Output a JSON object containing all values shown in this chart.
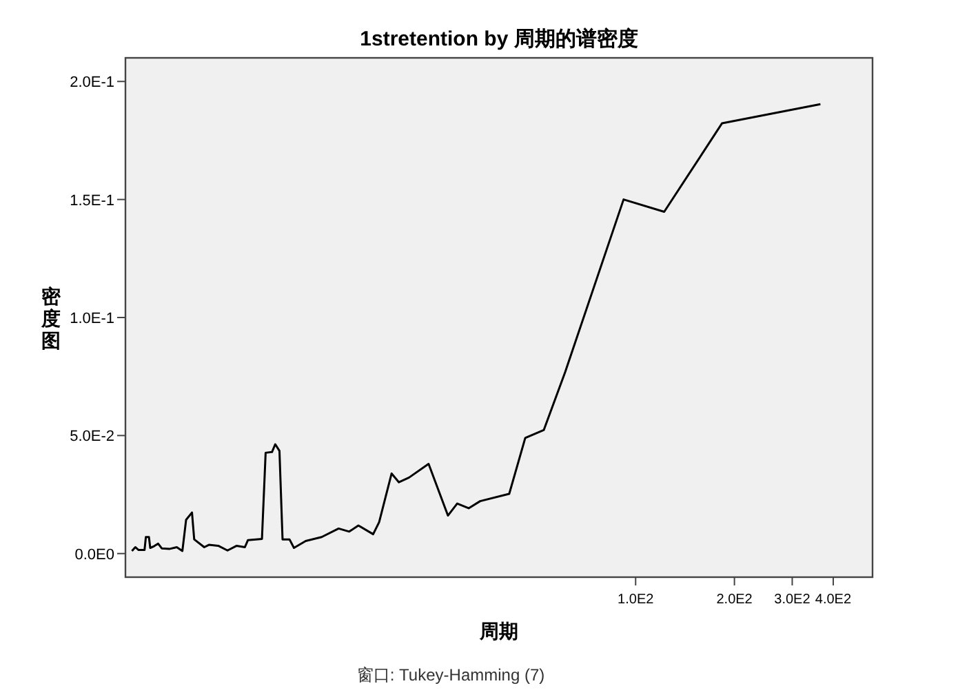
{
  "chart_data": {
    "type": "line",
    "title": "1stretention by 周期的谱密度",
    "xlabel": "周期",
    "ylabel": "密度图",
    "annotations": [
      "窗口: Tukey-Hamming (7)"
    ],
    "log": "x",
    "grid": false,
    "marker": "none",
    "line_style": "solid",
    "xlim": [
      2.79,
      527
    ],
    "ylim": [
      -0.01,
      0.21
    ],
    "xticks": [
      {
        "value": 100,
        "label": "1.0E2"
      },
      {
        "value": 200,
        "label": "2.0E2"
      },
      {
        "value": 300,
        "label": "3.0E2"
      },
      {
        "value": 400,
        "label": "4.0E2"
      }
    ],
    "yticks": [
      {
        "value": 0,
        "label": "0.0E0"
      },
      {
        "value": 0.05,
        "label": "5.0E-2"
      },
      {
        "value": 0.1,
        "label": "1.0E-1"
      },
      {
        "value": 0.15,
        "label": "1.5E-1"
      },
      {
        "value": 0.2,
        "label": "2.0E-1"
      }
    ],
    "series": [
      {
        "color": "#000000",
        "x": [
          2.92,
          2.99,
          3.06,
          3.19,
          3.22,
          3.29,
          3.32,
          3.41,
          3.51,
          3.6,
          3.81,
          4.0,
          4.16,
          4.27,
          4.45,
          4.52,
          4.85,
          5.01,
          5.35,
          5.71,
          6.09,
          6.45,
          6.59,
          7.27,
          7.46,
          7.8,
          7.98,
          8.22,
          8.4,
          8.82,
          9.1,
          9.88,
          11.05,
          12.45,
          13.41,
          14.3,
          15.86,
          16.54,
          18.05,
          19.0,
          20.4,
          23.4,
          26.8,
          28.6,
          31.0,
          33.6,
          41.2,
          46.1,
          52.5,
          61.0,
          91.9,
          122.2,
          183.4,
          365.6
        ],
        "values": [
          0.0011,
          0.0027,
          0.0015,
          0.0015,
          0.007,
          0.007,
          0.0024,
          0.0031,
          0.0042,
          0.0022,
          0.002,
          0.0027,
          0.0011,
          0.0143,
          0.0174,
          0.006,
          0.0027,
          0.0037,
          0.0033,
          0.0013,
          0.0033,
          0.0027,
          0.0057,
          0.0062,
          0.0427,
          0.043,
          0.0463,
          0.0435,
          0.006,
          0.006,
          0.0024,
          0.0053,
          0.007,
          0.0106,
          0.0093,
          0.0119,
          0.0082,
          0.0133,
          0.0339,
          0.0302,
          0.0322,
          0.038,
          0.0161,
          0.0212,
          0.0192,
          0.0222,
          0.0253,
          0.049,
          0.0523,
          0.0769,
          0.15,
          0.1448,
          0.1823,
          0.1904
        ]
      }
    ]
  }
}
